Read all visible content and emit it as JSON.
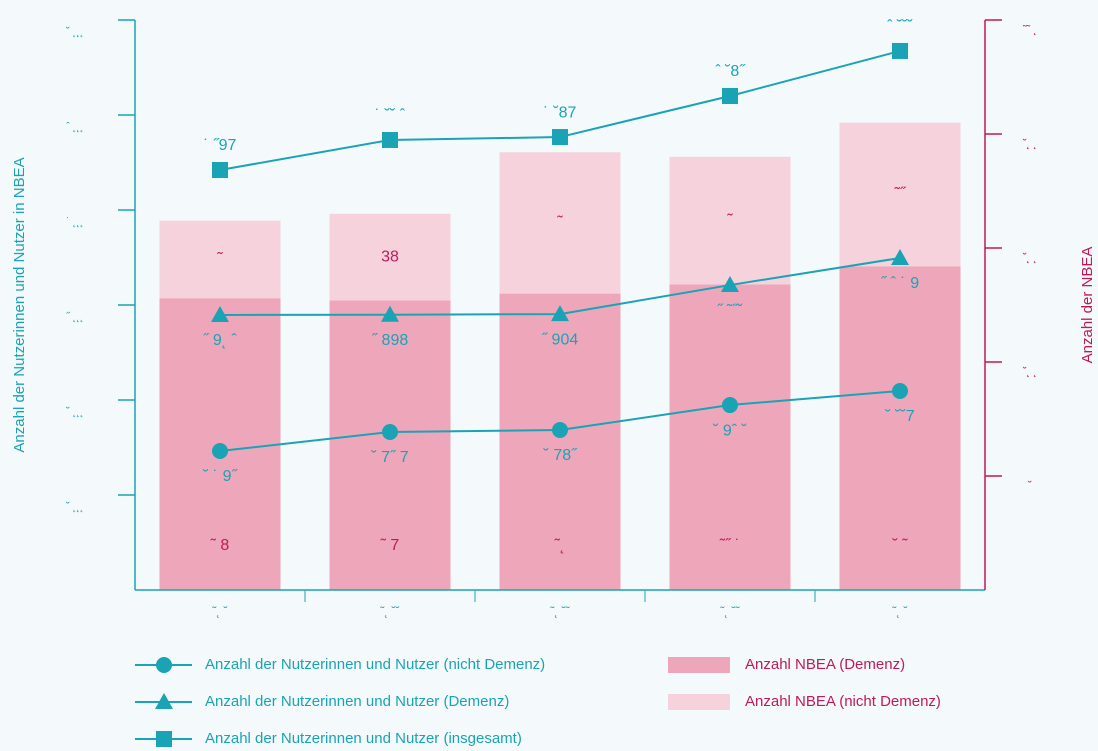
{
  "chart_data": {
    "type": "combo",
    "y_axis_label": "Anzahl der Nutzerinnen und Nutzer in NBEA",
    "y2_axis_label": "Anzahl der NBEA",
    "categories": [
      "˜˛ ˘",
      "˜˛ ˘˘",
      "˜˛ ˘˜",
      "˜˛ ˘˜",
      "˜˛ ˘"
    ],
    "ylim": [
      0,
      6000
    ],
    "yticks": [
      {
        "value": 1000,
        "label": "˘ ˛˛˛"
      },
      {
        "value": 2000,
        "label": "˘ ˛˛˛"
      },
      {
        "value": 3000,
        "label": "˝ ˛˛˛"
      },
      {
        "value": 4000,
        "label": "˙ ˛˛˛"
      },
      {
        "value": 5000,
        "label": "ˆ ˛˛˛"
      },
      {
        "value": 6000,
        "label": "˘ ˛˛˛"
      }
    ],
    "y2lim": [
      0,
      250
    ],
    "y2ticks": [
      {
        "value": 50,
        "label": "˘"
      },
      {
        "value": 100,
        "label": "˘˛ ˛"
      },
      {
        "value": 150,
        "label": "˘˛ ˛"
      },
      {
        "value": 200,
        "label": "˘˛ ˛"
      },
      {
        "value": 250,
        "label": "˜˜ ˛"
      }
    ],
    "series": [
      {
        "name": "Anzahl NBEA (Demenz)",
        "type": "bar",
        "axis": "y2",
        "color": "#eea7ba",
        "label_color": "#c2185b",
        "values": [
          128,
          127,
          130,
          134,
          142
        ],
        "value_labels": [
          "˜ 8",
          "˜ 7",
          "˜˛",
          "˜˝ ˙",
          "˘ ˜"
        ]
      },
      {
        "name": "Anzahl NBEA (nicht Demenz)",
        "type": "bar",
        "axis": "y2",
        "color": "#f5d2dc",
        "label_color": "#c2185b",
        "values": [
          34,
          38,
          62,
          56,
          63
        ],
        "value_labels": [
          "˜",
          "38",
          "˜",
          "˜",
          "˜˝"
        ]
      },
      {
        "name": "Anzahl der Nutzerinnen und Nutzer (nicht Demenz)",
        "type": "line",
        "marker": "circle",
        "color": "#1aa3b5",
        "values": [
          1463,
          1663,
          1684,
          1947,
          2095
        ],
        "value_labels": [
          "˘ ˙ 9˝",
          "˘ 7˝ 7",
          "˘ 78˝",
          "˘ 9ˆ ˘",
          "˘ ˘˘7"
        ]
      },
      {
        "name": "Anzahl der Nutzerinnen und Nutzer (Demenz)",
        "type": "line",
        "marker": "triangle",
        "color": "#1aa3b5",
        "values": [
          2895,
          2898,
          2904,
          3210,
          3495
        ],
        "value_labels": [
          "˝ 9˛ ˆ",
          "˝ 898",
          "˝ 904",
          "˝ ˜˝˘",
          "˝ ˆ ˙ 9"
        ]
      },
      {
        "name": "Anzahl der Nutzerinnen und Nutzer (insgesamt)",
        "type": "line",
        "marker": "square",
        "color": "#1aa3b5",
        "values": [
          4421,
          4737,
          4768,
          5200,
          5674
        ],
        "value_labels": [
          "˙ ˝97",
          "˙ ˘˘ ˆ",
          "˙ ˘87",
          "ˆ ˘8˝",
          "ˆ ˘˘˘"
        ]
      }
    ]
  }
}
